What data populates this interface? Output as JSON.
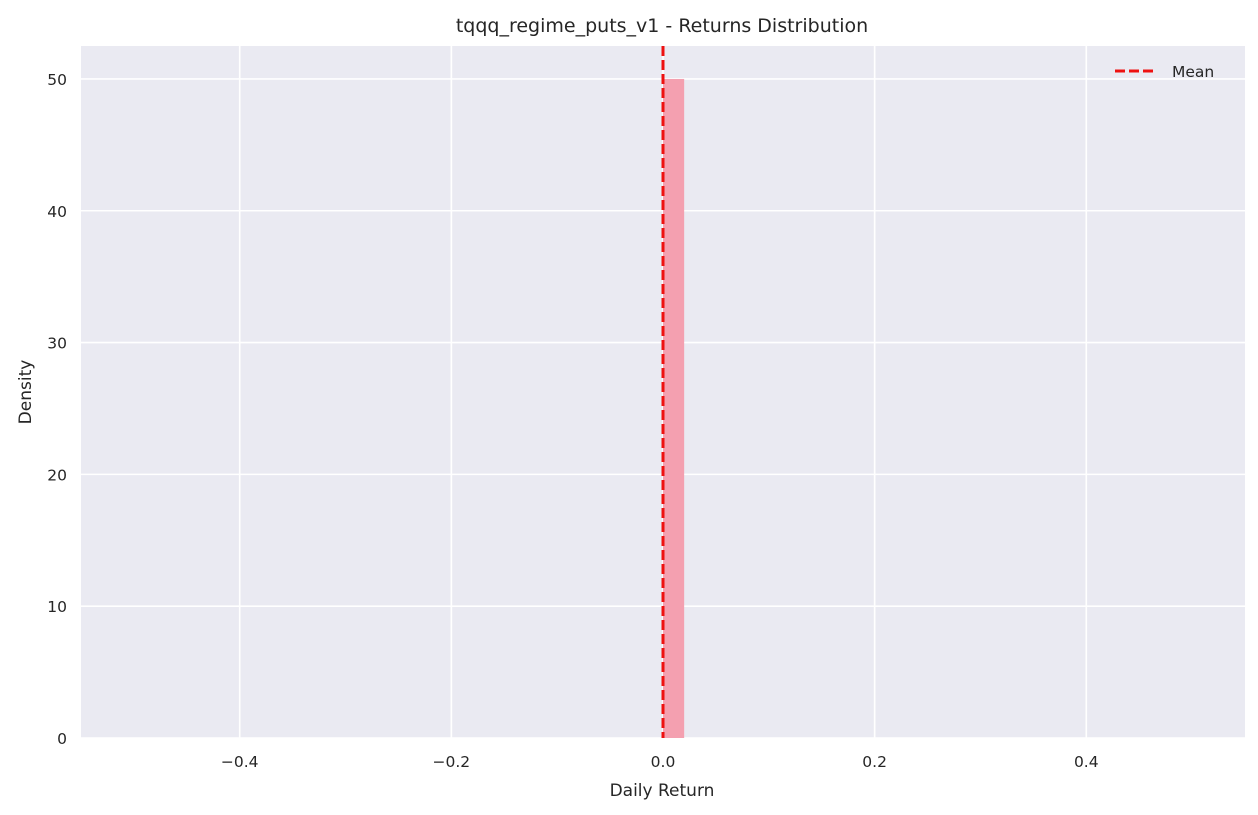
{
  "chart_data": {
    "type": "histogram",
    "title": "tqqq_regime_puts_v1 - Returns Distribution",
    "xlabel": "Daily Return",
    "ylabel": "Density",
    "xlim": [
      -0.55,
      0.55
    ],
    "ylim": [
      0,
      52.5
    ],
    "x_ticks": [
      -0.4,
      -0.2,
      0.0,
      0.2,
      0.4
    ],
    "x_tick_labels": [
      "−0.4",
      "−0.2",
      "0.0",
      "0.2",
      "0.4"
    ],
    "y_ticks": [
      0,
      10,
      20,
      30,
      40,
      50
    ],
    "y_tick_labels": [
      "0",
      "10",
      "20",
      "30",
      "40",
      "50"
    ],
    "bins": [
      {
        "start": 0.0,
        "end": 0.02,
        "density": 50
      }
    ],
    "mean_line": {
      "x": 0.0,
      "label": "Mean",
      "color": "#ee1111",
      "style": "dashed"
    },
    "legend": {
      "position": "top-right",
      "entries": [
        "Mean"
      ]
    },
    "grid": true,
    "colors": {
      "plot_background": "#eaeaf2",
      "grid": "#ffffff",
      "bar": "#f4a0b0",
      "mean_line": "#ee1111"
    }
  }
}
